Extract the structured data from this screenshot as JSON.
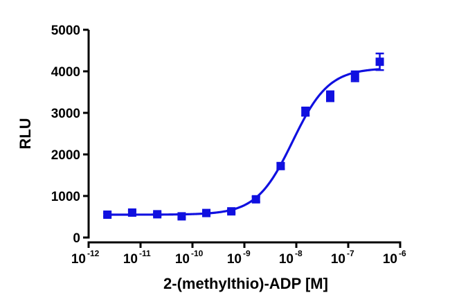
{
  "chart_data": {
    "type": "scatter",
    "title": "",
    "xlabel": "2-(methylthio)-ADP [M]",
    "ylabel": "RLU",
    "x_scale": "log10",
    "xlim": [
      1e-12,
      1e-06
    ],
    "ylim": [
      0,
      5000
    ],
    "x_ticks": [
      {
        "base": "10",
        "exp": "-12"
      },
      {
        "base": "10",
        "exp": "-11"
      },
      {
        "base": "10",
        "exp": "-10"
      },
      {
        "base": "10",
        "exp": "-9"
      },
      {
        "base": "10",
        "exp": "-8"
      },
      {
        "base": "10",
        "exp": "-7"
      },
      {
        "base": "10",
        "exp": "-6"
      }
    ],
    "y_ticks": [
      "0",
      "1000",
      "2000",
      "3000",
      "4000",
      "5000"
    ],
    "grid": false,
    "legend": "none",
    "marker": "square",
    "color": "#1010e0",
    "series": [
      {
        "x": [
          2.3e-12,
          6.9e-12,
          2.1e-11,
          6.2e-11,
          1.85e-10,
          5.6e-10,
          1.67e-09,
          5e-09,
          1.5e-08,
          4.5e-08,
          1.35e-07,
          4.05e-07
        ],
        "y": [
          550,
          600,
          560,
          510,
          590,
          630,
          920,
          1720,
          3030,
          3400,
          3880,
          4230
        ],
        "y_err": [
          40,
          40,
          40,
          40,
          40,
          40,
          60,
          70,
          100,
          120,
          120,
          200
        ]
      }
    ],
    "fit_curve": {
      "model": "sigmoidal dose-response",
      "bottom": 550,
      "top": 4080,
      "ec50": 8.5e-09,
      "hill_slope": 1.25
    }
  }
}
